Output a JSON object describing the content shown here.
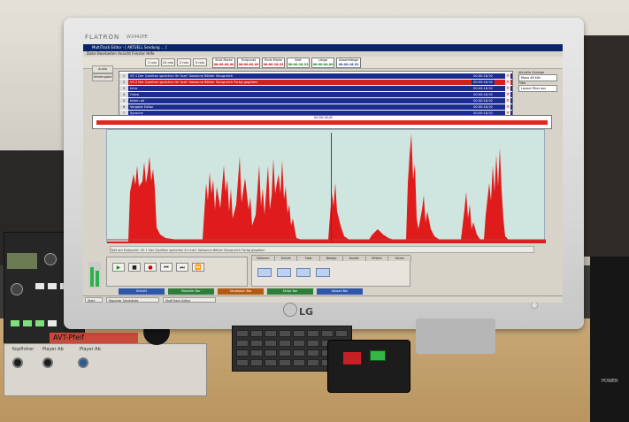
{
  "monitor": {
    "brand": "FLATRON",
    "model": "W2442PE",
    "logo": "LG",
    "power_icon": "power-icon"
  },
  "app": {
    "title": "MultiTrack Editor - [ AKTUELL Sendung ... ]",
    "menu": "Datei  Bearbeiten  Ansicht  Fenster  Hilfe",
    "toolbar": {
      "buttons": [
        "1 min",
        "10 min",
        "2 min",
        "5 min"
      ],
      "counters": [
        {
          "label": "Start Marke",
          "value": "00:00:00,00",
          "tone": "red"
        },
        {
          "label": "Endpunkt",
          "value": "00:00:00,00",
          "tone": "red"
        },
        {
          "label": "Ende Marke",
          "value": "00:00:18,92",
          "tone": "red"
        },
        {
          "label": "Sekt",
          "value": "00:00:18,92",
          "tone": "green"
        },
        {
          "label": "Länge",
          "value": "00:00:00,00",
          "tone": "green"
        },
        {
          "label": "Gesamtlänge",
          "value": "00:00:18,92",
          "tone": "blue"
        }
      ]
    },
    "sidebar": [
      "Audio",
      "Wiedergabe"
    ],
    "list_rows": [
      {
        "num": "1",
        "text": "VS 1 Der Quellton sprechen ihr fuer! Saisonne Böhler Stoupreich",
        "time": "00:00:18,92",
        "color": "#1b2c8f"
      },
      {
        "num": "2",
        "text": "VS 2 Der Quellton sprechen ihr fuer! Saisonne Böhler Stoupreich Forbg gegeben",
        "time": "00:00:18,92",
        "color": "#d0211c"
      },
      {
        "num": "3",
        "text": "Intro",
        "time": "00:00:18,92",
        "color": "#1b2c8f"
      },
      {
        "num": "4",
        "text": "Outro",
        "time": "00:00:18,92",
        "color": "#1b2c8f"
      },
      {
        "num": "5",
        "text": "Intern ali",
        "time": "00:00:18,92",
        "color": "#1b2c8f"
      },
      {
        "num": "6",
        "text": "Vorgabe Editor",
        "time": "00:00:18,92",
        "color": "#1b2c8f"
      },
      {
        "num": "7",
        "text": "Sprache",
        "time": "00:00:18,92",
        "color": "#1b2c8f"
      },
      {
        "num": "8",
        "text": "VS 1 Der Quellton sprechen ihr fuer! Saisonne Böhler Stoupreich gegeben markiert",
        "time": "00:00:18,92",
        "color": "#1b2c8f"
      }
    ],
    "right_panel": {
      "label1": "Aktuelle Anzeige",
      "select1": "Mono 48 kHz",
      "label2": "Filter",
      "select2": "Layout Filter aus"
    },
    "wave_tag": "00:00:18,92",
    "status_text": "Takt am Endpunkt: VS 1 Der Quellton sprechen ihr fuer! Saisonne Böhler Stoupreich Forbg gegeben",
    "transport_buttons": [
      "▶",
      "■",
      "●",
      "⏮",
      "⏭",
      "⏪"
    ],
    "tabs": [
      "Editieren",
      "Schnitt",
      "Fade",
      "Bezüge",
      "Kanäle",
      "Effekte",
      "Extras"
    ],
    "bottom_items": [
      {
        "label": "Schnitt",
        "color": "#2f56a8"
      },
      {
        "label": "Reporter Bar",
        "color": "#2f7d3a"
      },
      {
        "label": "Sendeplan Bar",
        "color": "#b35b12"
      },
      {
        "label": "Skript Bar",
        "color": "#2f7d3a"
      },
      {
        "label": "Upload Bar",
        "color": "#2f56a8"
      }
    ],
    "taskbar": [
      "Start",
      "Reporter Sendeliste",
      "MultiTrack Editor"
    ]
  },
  "desk": {
    "rack_label": "AVT-Pfeif",
    "panel_text": [
      "Kopfhörer",
      "Player Ab",
      "Player Ab"
    ],
    "speaker_label": "POWER"
  },
  "colors": {
    "wave_fill": "#e01b1b",
    "wave_bg": "#cfe6e0",
    "title_bar": "#0a246a"
  }
}
